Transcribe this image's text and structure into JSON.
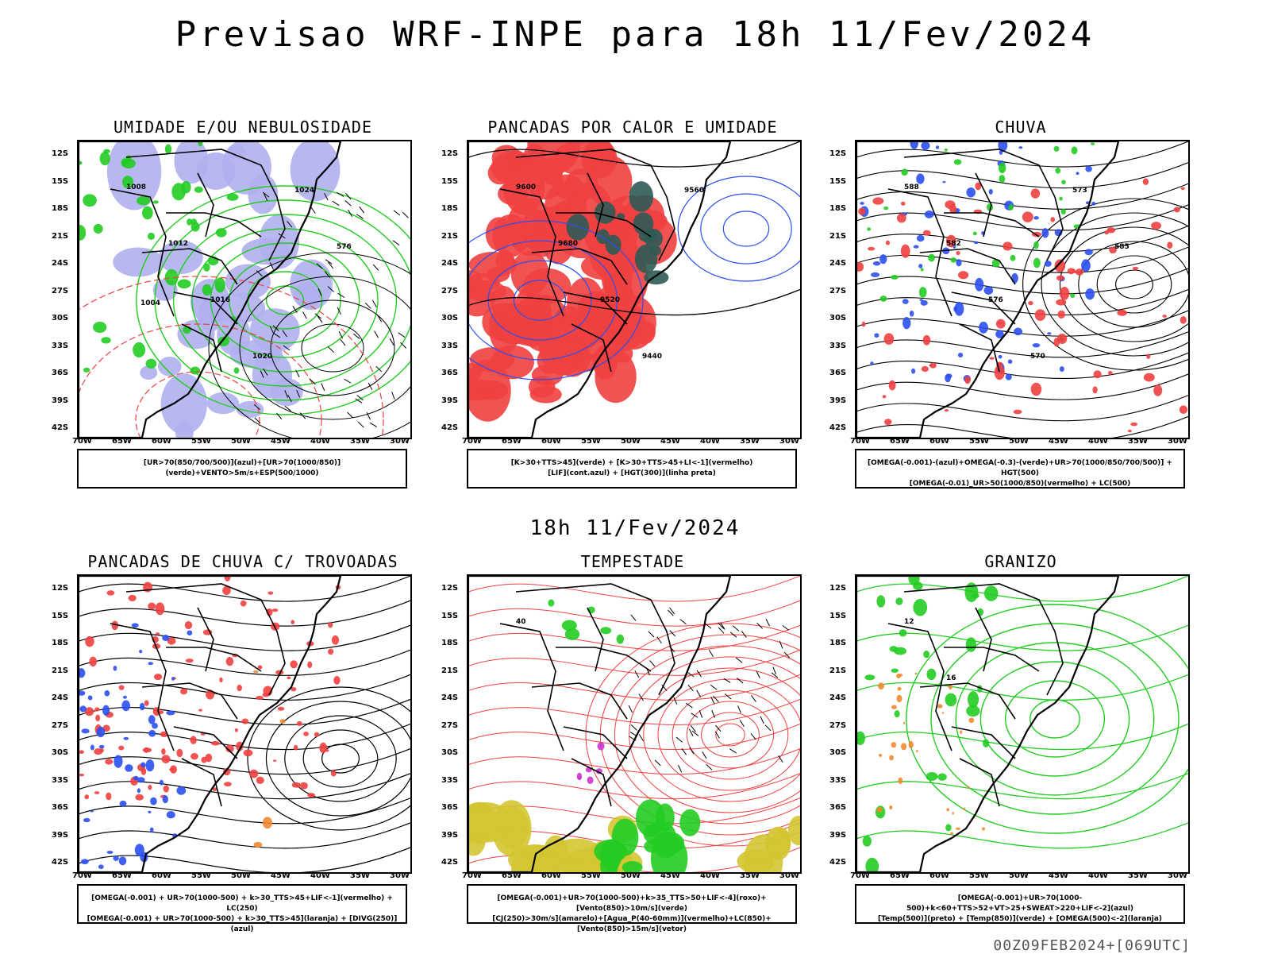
{
  "header": {
    "title": "Previsao WRF-INPE  para 18h 11/Fev/2024",
    "mid_time": "18h 11/Fev/2024",
    "footer": "00Z09FEB2024+[069UTC]"
  },
  "axes": {
    "lat_labels": [
      "12S",
      "15S",
      "18S",
      "21S",
      "24S",
      "27S",
      "30S",
      "33S",
      "36S",
      "39S",
      "42S"
    ],
    "lon_labels": [
      "70W",
      "65W",
      "60W",
      "55W",
      "50W",
      "45W",
      "40W",
      "35W",
      "30W"
    ]
  },
  "panels": [
    {
      "id": "umidade",
      "title": "UMIDADE E/OU NEBULOSIDADE",
      "legend": [
        "[UR>70(850/700/500)](azul)+[UR>70(1000/850)](verde)+VENTO>5m/s+ESP(500/1000)"
      ],
      "labels": [
        "1008",
        "1012",
        "1016",
        "1020",
        "1024",
        "576",
        "1004"
      ]
    },
    {
      "id": "pancadas-calor",
      "title": "PANCADAS POR CALOR E UMIDADE",
      "legend": [
        "[K>30+TTS>45](verde) + [K>30+TTS>45+LI<-1](vermelho)",
        "[LIF](cont.azul) + [HGT(300)](linha preta)"
      ],
      "labels": [
        "9600",
        "9680",
        "9520",
        "9440",
        "9560"
      ]
    },
    {
      "id": "chuva",
      "title": "CHUVA",
      "legend": [
        "[OMEGA(-0.001)-(azul)+OMEGA(-0.3)-(verde)+UR>70(1000/850/700/500)] + HGT(500)",
        "[OMEGA(-0.01)_UR>50(1000/850)(vermelho) + LC(500)"
      ],
      "labels": [
        "588",
        "582",
        "576",
        "570",
        "573",
        "585"
      ]
    },
    {
      "id": "trovoadas",
      "title": "PANCADAS DE CHUVA C/ TROVOADAS",
      "legend": [
        "[OMEGA(-0.001) + UR>70(1000-500) + k>30_TTS>45+LIF<-1](vermelho) + LC(250)",
        "[OMEGA(-0.001) + UR>70(1000-500) + k>30_TTS>45](laranja) + [DIVG(250)](azul)"
      ],
      "labels": []
    },
    {
      "id": "tempestade",
      "title": "TEMPESTADE",
      "legend": [
        "[OMEGA(-0.001)+UR>70(1000-500)+k>35_TTS>50+LIF<-4](roxo)+[Vento(850)>10m/s](verde)",
        "[CJ(250)>30m/s](amarelo)+[Agua_P(40-60mm)](vermelho)+LC(850)+[Vento(850)>15m/s](vetor)"
      ],
      "labels": [
        "40"
      ]
    },
    {
      "id": "granizo",
      "title": "GRANIZO",
      "legend": [
        "[OMEGA(-0.001)+UR>70(1000-500)+k<60+TTS>52+VT>25+SWEAT>220+LIF<-2](azul)",
        "[Temp(500)](preto) + [Temp(850)](verde) + [OMEGA(500)<-2](laranja)"
      ],
      "labels": [
        "12",
        "16"
      ]
    }
  ],
  "colors": {
    "blue": "#2b4ff0",
    "green": "#22cc22",
    "red": "#f04040",
    "lavender": "#b0b0f0",
    "darkteal": "#2e5a55",
    "yellow": "#d4c531",
    "orange": "#f08a30",
    "magenta": "#cc33cc"
  }
}
